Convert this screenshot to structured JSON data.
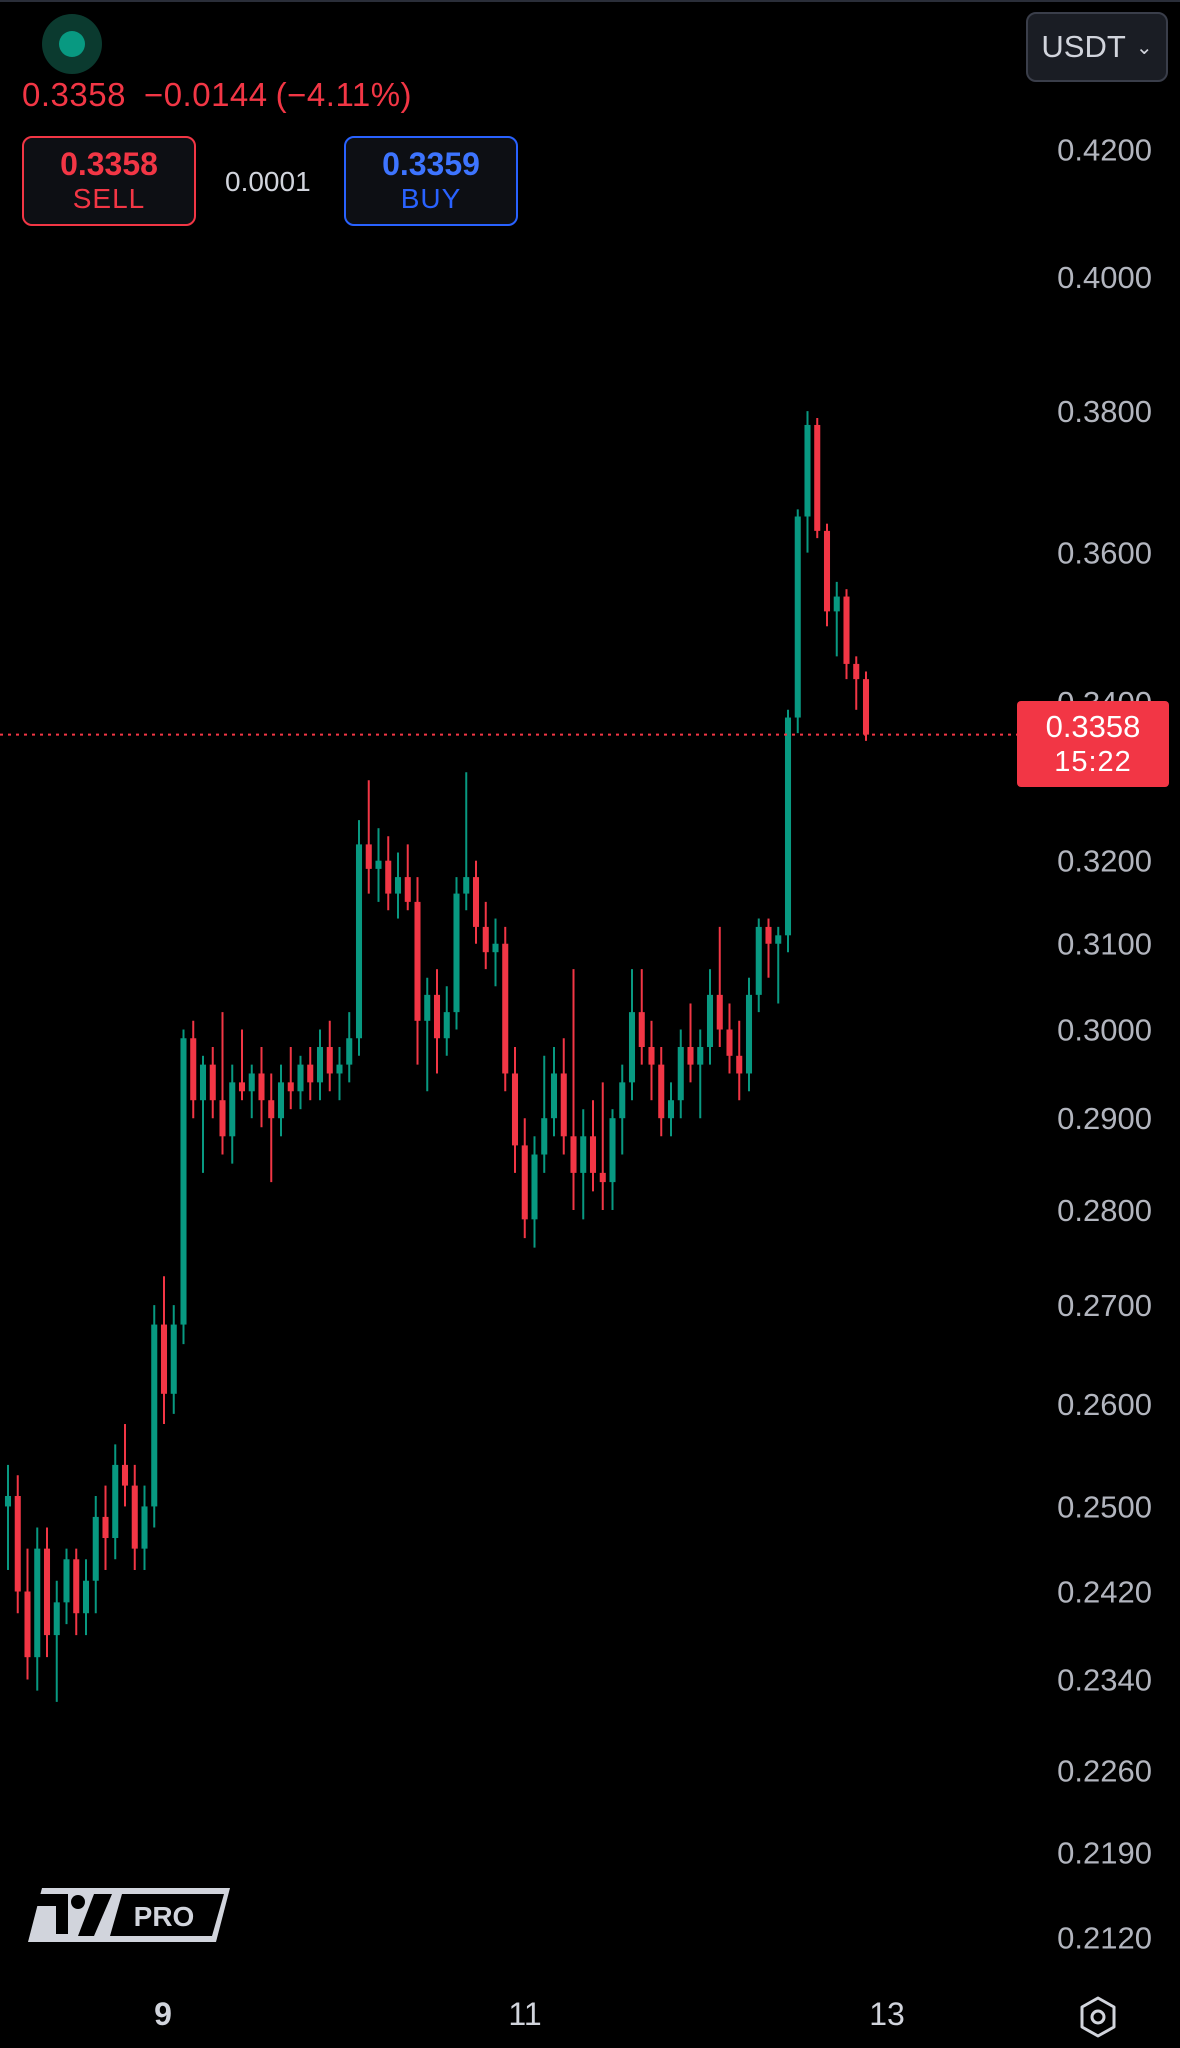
{
  "header": {
    "last_price": "0.3358",
    "change": "−0.0144",
    "change_pct": "(−4.11%)",
    "sell_price": "0.3358",
    "sell_label": "SELL",
    "spread": "0.0001",
    "buy_price": "0.3359",
    "buy_label": "BUY",
    "currency": "USDT"
  },
  "price_tag": {
    "price": "0.3358",
    "countdown": "15:22"
  },
  "logo": {
    "text": "PRO"
  },
  "colors": {
    "up": "#089981",
    "down": "#f23645",
    "buy": "#2962ff",
    "background": "#000000"
  },
  "icons": [
    "status-dot-icon",
    "chevron-down-icon",
    "settings-gear-icon",
    "tradingview-logo"
  ],
  "chart_data": {
    "type": "candlestick",
    "y_axis_labels": [
      "0.4200",
      "0.4000",
      "0.3800",
      "0.3600",
      "0.3400",
      "0.3200",
      "0.3100",
      "0.3000",
      "0.2900",
      "0.2800",
      "0.2700",
      "0.2600",
      "0.2500",
      "0.2420",
      "0.2340",
      "0.2260",
      "0.2190",
      "0.2120"
    ],
    "x_axis_labels": [
      "9",
      "11",
      "13"
    ],
    "ylim": [
      0.209,
      0.428
    ],
    "scale": "log",
    "current_price": 0.3358,
    "candles_ohlc": [
      [
        0.25,
        0.254,
        0.244,
        0.251
      ],
      [
        0.251,
        0.253,
        0.24,
        0.242
      ],
      [
        0.242,
        0.246,
        0.234,
        0.236
      ],
      [
        0.236,
        0.248,
        0.233,
        0.246
      ],
      [
        0.246,
        0.248,
        0.236,
        0.238
      ],
      [
        0.238,
        0.243,
        0.232,
        0.241
      ],
      [
        0.241,
        0.246,
        0.239,
        0.245
      ],
      [
        0.245,
        0.246,
        0.238,
        0.24
      ],
      [
        0.24,
        0.245,
        0.238,
        0.243
      ],
      [
        0.243,
        0.251,
        0.24,
        0.249
      ],
      [
        0.249,
        0.252,
        0.244,
        0.247
      ],
      [
        0.247,
        0.256,
        0.245,
        0.254
      ],
      [
        0.254,
        0.258,
        0.25,
        0.252
      ],
      [
        0.252,
        0.254,
        0.244,
        0.246
      ],
      [
        0.246,
        0.252,
        0.244,
        0.25
      ],
      [
        0.25,
        0.27,
        0.248,
        0.268
      ],
      [
        0.268,
        0.273,
        0.258,
        0.261
      ],
      [
        0.261,
        0.27,
        0.259,
        0.268
      ],
      [
        0.268,
        0.3,
        0.266,
        0.299
      ],
      [
        0.299,
        0.301,
        0.29,
        0.292
      ],
      [
        0.292,
        0.297,
        0.284,
        0.296
      ],
      [
        0.296,
        0.298,
        0.29,
        0.292
      ],
      [
        0.292,
        0.302,
        0.286,
        0.288
      ],
      [
        0.288,
        0.296,
        0.285,
        0.294
      ],
      [
        0.294,
        0.3,
        0.292,
        0.293
      ],
      [
        0.293,
        0.296,
        0.29,
        0.295
      ],
      [
        0.295,
        0.298,
        0.289,
        0.292
      ],
      [
        0.292,
        0.295,
        0.283,
        0.29
      ],
      [
        0.29,
        0.296,
        0.288,
        0.294
      ],
      [
        0.294,
        0.298,
        0.291,
        0.293
      ],
      [
        0.293,
        0.297,
        0.291,
        0.296
      ],
      [
        0.296,
        0.298,
        0.292,
        0.294
      ],
      [
        0.294,
        0.3,
        0.292,
        0.298
      ],
      [
        0.298,
        0.301,
        0.293,
        0.295
      ],
      [
        0.295,
        0.298,
        0.292,
        0.296
      ],
      [
        0.296,
        0.302,
        0.294,
        0.299
      ],
      [
        0.299,
        0.325,
        0.297,
        0.322
      ],
      [
        0.322,
        0.33,
        0.316,
        0.319
      ],
      [
        0.319,
        0.324,
        0.315,
        0.32
      ],
      [
        0.32,
        0.323,
        0.314,
        0.316
      ],
      [
        0.316,
        0.321,
        0.313,
        0.318
      ],
      [
        0.318,
        0.322,
        0.314,
        0.315
      ],
      [
        0.315,
        0.318,
        0.296,
        0.301
      ],
      [
        0.301,
        0.306,
        0.293,
        0.304
      ],
      [
        0.304,
        0.307,
        0.295,
        0.299
      ],
      [
        0.299,
        0.305,
        0.297,
        0.302
      ],
      [
        0.302,
        0.318,
        0.3,
        0.316
      ],
      [
        0.316,
        0.331,
        0.314,
        0.318
      ],
      [
        0.318,
        0.32,
        0.31,
        0.312
      ],
      [
        0.312,
        0.315,
        0.307,
        0.309
      ],
      [
        0.309,
        0.313,
        0.305,
        0.31
      ],
      [
        0.31,
        0.312,
        0.293,
        0.295
      ],
      [
        0.295,
        0.298,
        0.284,
        0.287
      ],
      [
        0.287,
        0.29,
        0.277,
        0.279
      ],
      [
        0.279,
        0.288,
        0.276,
        0.286
      ],
      [
        0.286,
        0.297,
        0.284,
        0.29
      ],
      [
        0.29,
        0.298,
        0.288,
        0.295
      ],
      [
        0.295,
        0.299,
        0.286,
        0.288
      ],
      [
        0.288,
        0.307,
        0.28,
        0.284
      ],
      [
        0.284,
        0.291,
        0.279,
        0.288
      ],
      [
        0.288,
        0.292,
        0.282,
        0.284
      ],
      [
        0.284,
        0.294,
        0.28,
        0.283
      ],
      [
        0.283,
        0.291,
        0.28,
        0.29
      ],
      [
        0.29,
        0.296,
        0.286,
        0.294
      ],
      [
        0.294,
        0.307,
        0.292,
        0.302
      ],
      [
        0.302,
        0.307,
        0.296,
        0.298
      ],
      [
        0.298,
        0.301,
        0.292,
        0.296
      ],
      [
        0.296,
        0.298,
        0.288,
        0.29
      ],
      [
        0.29,
        0.294,
        0.288,
        0.292
      ],
      [
        0.292,
        0.3,
        0.29,
        0.298
      ],
      [
        0.298,
        0.303,
        0.294,
        0.296
      ],
      [
        0.296,
        0.3,
        0.29,
        0.298
      ],
      [
        0.298,
        0.307,
        0.296,
        0.304
      ],
      [
        0.304,
        0.312,
        0.298,
        0.3
      ],
      [
        0.3,
        0.303,
        0.295,
        0.297
      ],
      [
        0.297,
        0.301,
        0.292,
        0.295
      ],
      [
        0.295,
        0.306,
        0.293,
        0.304
      ],
      [
        0.304,
        0.313,
        0.302,
        0.312
      ],
      [
        0.312,
        0.313,
        0.306,
        0.31
      ],
      [
        0.31,
        0.312,
        0.303,
        0.311
      ],
      [
        0.311,
        0.339,
        0.309,
        0.338
      ],
      [
        0.338,
        0.366,
        0.336,
        0.365
      ],
      [
        0.365,
        0.38,
        0.36,
        0.378
      ],
      [
        0.378,
        0.379,
        0.362,
        0.363
      ],
      [
        0.363,
        0.364,
        0.35,
        0.352
      ],
      [
        0.352,
        0.356,
        0.346,
        0.354
      ],
      [
        0.354,
        0.355,
        0.343,
        0.345
      ],
      [
        0.345,
        0.346,
        0.339,
        0.343
      ],
      [
        0.343,
        0.344,
        0.335,
        0.3358
      ]
    ]
  }
}
